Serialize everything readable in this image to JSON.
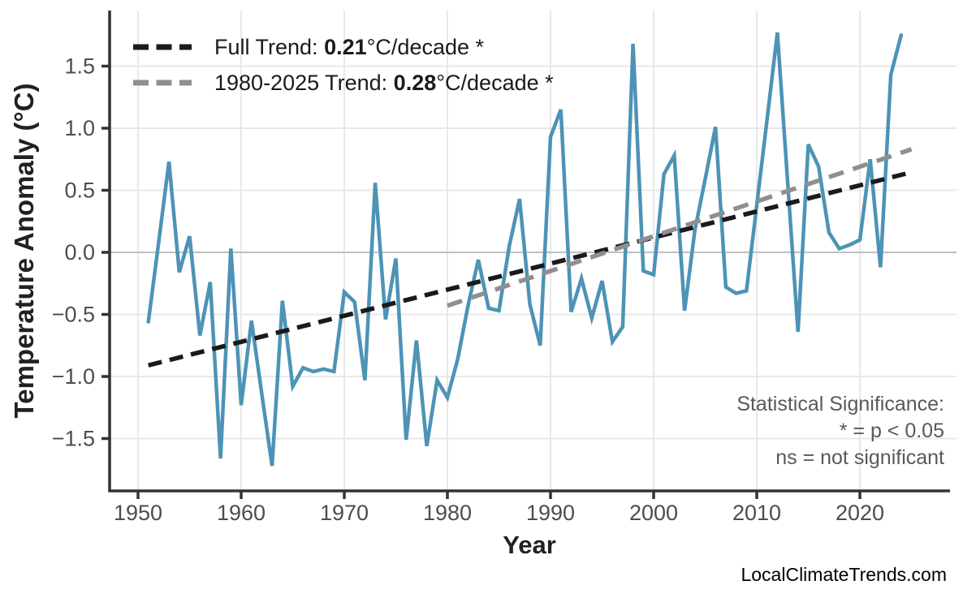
{
  "chart_data": {
    "type": "line",
    "title": "",
    "xlabel": "Year",
    "ylabel": "Temperature Anomaly (°C)",
    "grid": true,
    "xlim": [
      1947,
      2030
    ],
    "ylim": [
      -1.93,
      1.95
    ],
    "x_ticks": [
      1950,
      1960,
      1970,
      1980,
      1990,
      2000,
      2010,
      2020
    ],
    "y_ticks": [
      {
        "label": "1.5",
        "value": 1.5
      },
      {
        "label": "1.0",
        "value": 1.0
      },
      {
        "label": "0.5",
        "value": 0.5
      },
      {
        "label": "0.0",
        "value": 0.0
      },
      {
        "label": "−0.5",
        "value": -0.5
      },
      {
        "label": "−1.0",
        "value": -1.0
      },
      {
        "label": "−1.5",
        "value": -1.5
      }
    ],
    "series": [
      {
        "name": "annual-temperature-anomaly",
        "x": [
          1951,
          1952,
          1953,
          1954,
          1955,
          1956,
          1957,
          1958,
          1959,
          1960,
          1961,
          1962,
          1963,
          1964,
          1965,
          1966,
          1967,
          1968,
          1969,
          1970,
          1971,
          1972,
          1973,
          1974,
          1975,
          1976,
          1977,
          1978,
          1979,
          1980,
          1981,
          1982,
          1983,
          1984,
          1985,
          1986,
          1987,
          1988,
          1989,
          1990,
          1991,
          1992,
          1993,
          1994,
          1995,
          1996,
          1997,
          1998,
          1999,
          2000,
          2001,
          2002,
          2003,
          2004,
          2005,
          2006,
          2007,
          2008,
          2009,
          2010,
          2011,
          2012,
          2013,
          2014,
          2015,
          2016,
          2017,
          2018,
          2019,
          2020,
          2021,
          2022,
          2023,
          2024
        ],
        "values": [
          -0.56,
          0.08,
          0.73,
          -0.16,
          0.13,
          -0.67,
          -0.24,
          -1.66,
          0.03,
          -1.23,
          -0.55,
          -1.14,
          -1.72,
          -0.39,
          -1.08,
          -0.93,
          -0.96,
          -0.94,
          -0.96,
          -0.32,
          -0.4,
          -1.03,
          0.56,
          -0.54,
          -0.05,
          -1.51,
          -0.71,
          -1.56,
          -1.03,
          -1.17,
          -0.86,
          -0.43,
          -0.06,
          -0.45,
          -0.47,
          0.05,
          0.43,
          -0.42,
          -0.75,
          0.93,
          1.15,
          -0.48,
          -0.21,
          -0.53,
          -0.23,
          -0.72,
          -0.6,
          1.68,
          -0.15,
          -0.18,
          0.63,
          0.78,
          -0.47,
          0.18,
          0.59,
          1.01,
          -0.28,
          -0.33,
          -0.31,
          0.38,
          1.07,
          1.77,
          0.56,
          -0.64,
          0.87,
          0.69,
          0.16,
          0.03,
          0.06,
          0.1,
          0.75,
          -0.12,
          1.43,
          1.75
        ]
      },
      {
        "name": "full-trend",
        "slope_per_decade": 0.21,
        "x": [
          1951,
          2025
        ],
        "values": [
          -0.91,
          0.645
        ]
      },
      {
        "name": "trend-1980-2025",
        "slope_per_decade": 0.28,
        "x": [
          1980,
          2025
        ],
        "values": [
          -0.43,
          0.83
        ]
      }
    ],
    "legend_position": "upper left"
  },
  "legend": {
    "rows": [
      {
        "prefix": "Full Trend: ",
        "value": "0.21",
        "suffix": "°C/decade *"
      },
      {
        "prefix": "1980-2025 Trend: ",
        "value": "0.28",
        "suffix": "°C/decade *"
      }
    ]
  },
  "annotation": {
    "line1": "Statistical Significance:",
    "line2": "* = p < 0.05",
    "line3": "ns = not significant"
  },
  "footer": {
    "watermark": "LocalClimateTrends.com"
  },
  "axes": {
    "xlabel": "Year",
    "ylabel": "Temperature Anomaly (°C)"
  },
  "colors": {
    "line": "#4d93b6",
    "full_trend": "#1a1a1a",
    "recent_trend": "#8f8f8f",
    "grid": "#e8e8e8",
    "zero_line": "#c0c0c0",
    "axis": "#333333",
    "tick_label": "#4d4d4d",
    "annotation": "#595959"
  }
}
